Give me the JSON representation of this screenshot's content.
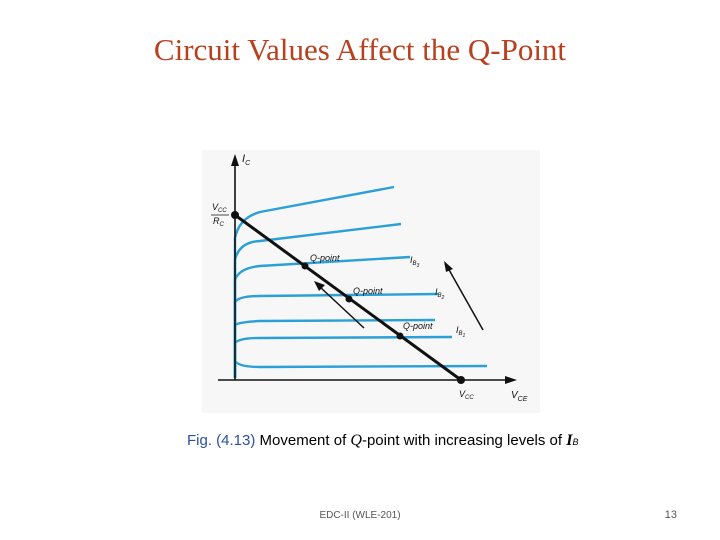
{
  "slide": {
    "title": "Circuit Values Affect the Q-Point",
    "caption": {
      "fig_ref": "Fig. (4.13)",
      "text_a": " Movement of ",
      "q": "Q",
      "text_b": "-point with increasing levels of ",
      "ib": "I",
      "ib_sub": "B"
    },
    "footer": "EDC-II (WLE-201)",
    "page_number": "13"
  },
  "diagram": {
    "y_axis_label": "I",
    "y_axis_sub": "C",
    "x_axis_label": "V",
    "x_axis_sub": "CE",
    "intercept_num": "V",
    "intercept_num_sub": "CC",
    "intercept_den": "R",
    "intercept_den_sub": "C",
    "vcc_label": "V",
    "vcc_sub": "CC",
    "qpoint_labels": [
      "Q-point",
      "Q-point",
      "Q-point"
    ],
    "ib_labels": [
      {
        "main": "I",
        "sub": "B",
        "subsub": "3"
      },
      {
        "main": "I",
        "sub": "B",
        "subsub": "2"
      },
      {
        "main": "I",
        "sub": "B",
        "subsub": "1"
      }
    ],
    "colors": {
      "curves": "#2a9fd8",
      "axes": "#111111",
      "loadline": "#111111"
    }
  }
}
